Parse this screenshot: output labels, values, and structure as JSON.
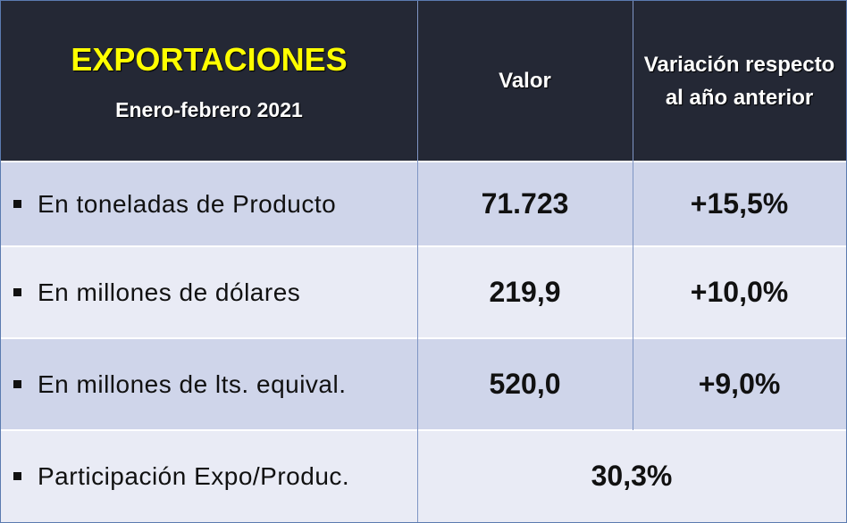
{
  "header": {
    "title": "EXPORTACIONES",
    "subtitle": "Enero-febrero 2021",
    "columns": [
      "Valor",
      "Variación respecto al año anterior"
    ]
  },
  "table": {
    "rows": [
      [
        "En toneladas de Producto",
        "71.723",
        "+15,5%"
      ],
      [
        "En millones de dólares",
        "219,9",
        "+10,0%"
      ],
      [
        "En millones de lts. equival.",
        "520,0",
        "+9,0%"
      ],
      [
        "Participación Expo/Produc.",
        "30,3%"
      ]
    ]
  }
}
